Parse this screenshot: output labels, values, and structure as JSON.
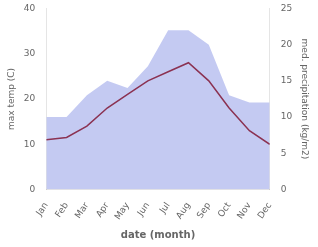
{
  "chart_data": {
    "type": "line",
    "xlabel": "date (month)",
    "ylabel": "max temp (C)",
    "y2label": "med. precipitation (kg/m2)",
    "categories": [
      "Jan",
      "Feb",
      "Mar",
      "Apr",
      "May",
      "Jun",
      "Jul",
      "Aug",
      "Sep",
      "Oct",
      "Nov",
      "Dec"
    ],
    "series": [
      {
        "type": "line",
        "color": "#8B3252",
        "values": [
          11,
          11.5,
          14,
          18,
          21,
          24,
          26,
          28,
          24,
          18,
          13,
          10
        ]
      },
      {
        "type": "area",
        "color": "#b0b8ee",
        "axis": "y2",
        "values": [
          10,
          10,
          13,
          15,
          14,
          17,
          22,
          22,
          20,
          13,
          12,
          12
        ]
      }
    ],
    "ylim": [
      0,
      40
    ],
    "yticks": [
      0,
      10,
      20,
      30,
      40
    ],
    "y2lim": [
      0,
      25
    ],
    "y2ticks": [
      0,
      5,
      10,
      15,
      20,
      25
    ],
    "grid": false
  }
}
